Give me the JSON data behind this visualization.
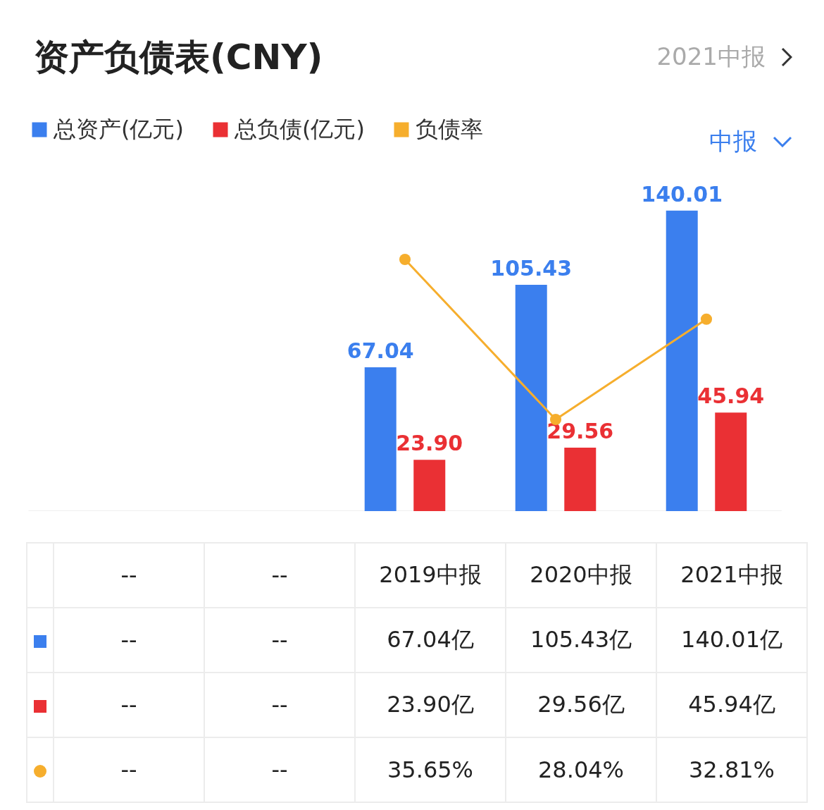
{
  "chart_data": {
    "type": "bar",
    "title": "资产负债表(CNY)",
    "annotations": [
      "2021中报",
      "中报",
      "--",
      "--",
      "67.04亿",
      "105.43亿",
      "140.01亿",
      "--",
      "--",
      "23.90亿",
      "29.56亿",
      "45.94亿"
    ],
    "categories": [
      "--",
      "--",
      "2019中报",
      "2020中报",
      "2021中报"
    ],
    "series": [
      {
        "name": "总资产(亿元)",
        "type": "bar",
        "color": "#3b7fee",
        "values": [
          null,
          null,
          67.04,
          105.43,
          140.01
        ],
        "value_labels": [
          null,
          null,
          "67.04",
          "105.43",
          "140.01"
        ]
      },
      {
        "name": "总负债(亿元)",
        "type": "bar",
        "color": "#ea3034",
        "values": [
          null,
          null,
          23.9,
          29.56,
          45.94
        ],
        "value_labels": [
          null,
          null,
          "23.90",
          "29.56",
          "45.94"
        ]
      },
      {
        "name": "负债率",
        "type": "line",
        "axis": "y2",
        "color": "#f6ae2d",
        "values": [
          null,
          null,
          35.65,
          28.04,
          32.81
        ],
        "value_labels": [
          "--",
          "--",
          "35.65%",
          "28.04%",
          "32.81%"
        ]
      }
    ],
    "data_labels": true,
    "grid": false,
    "legend": "top left",
    "tick_labels": false,
    "marker": "circle",
    "line_style": "solid"
  }
}
